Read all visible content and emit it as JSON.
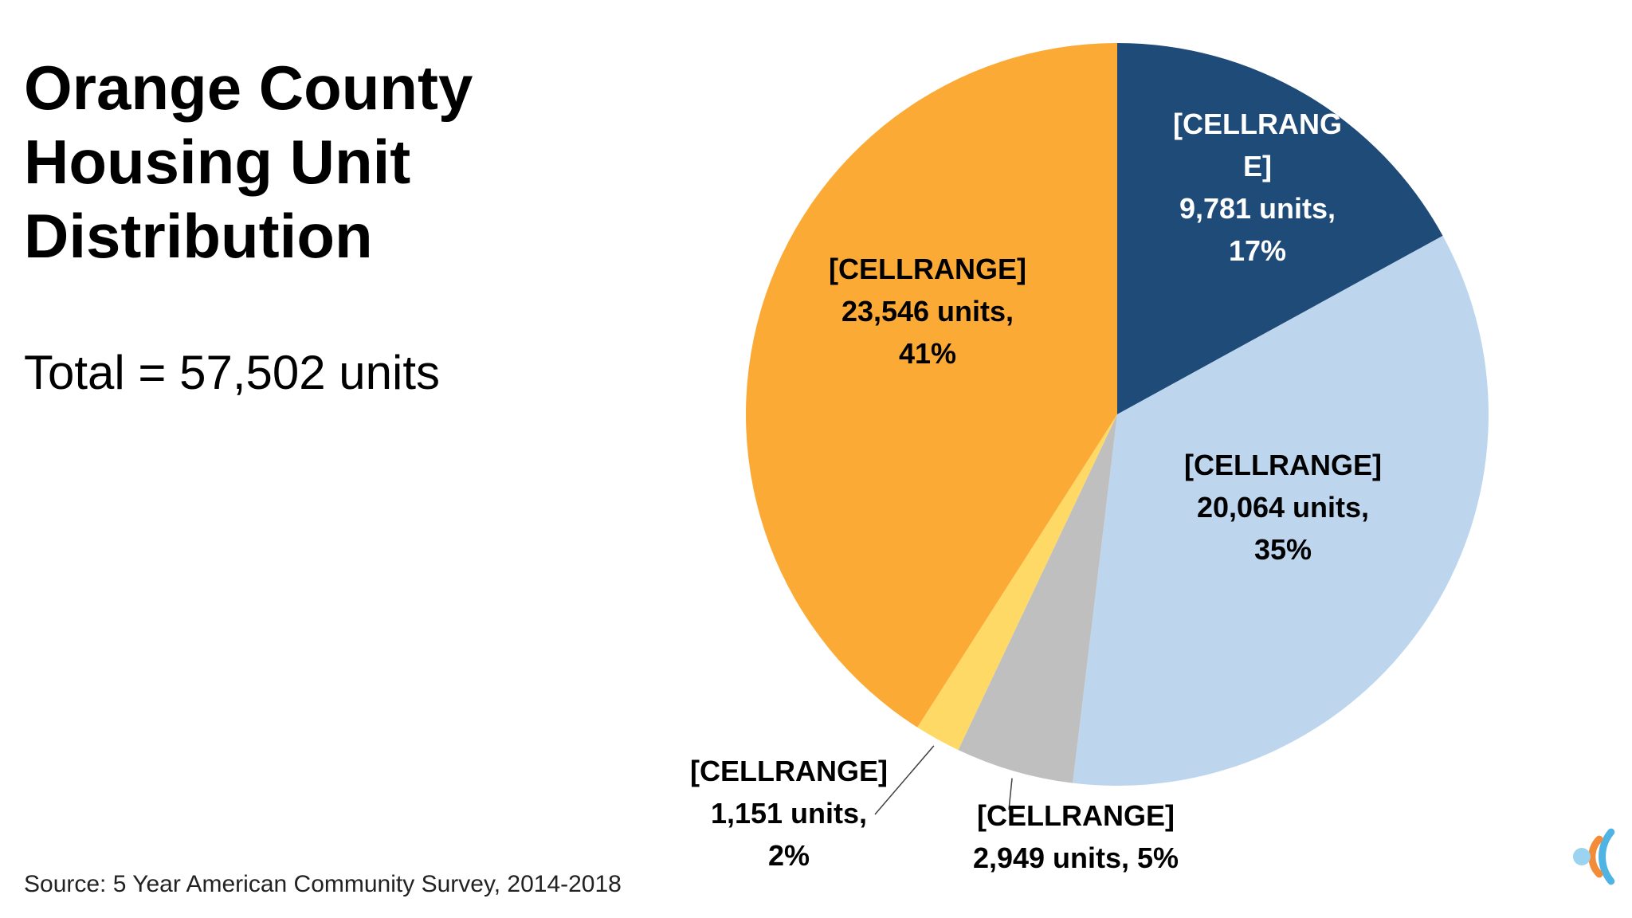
{
  "slide": {
    "title": "Orange County Housing Unit Distribution",
    "total": "Total = 57,502 units",
    "source": "Source: 5 Year American Community Survey, 2014-2018"
  },
  "chart_data": {
    "type": "pie",
    "start_angle_deg": 0,
    "direction": "clockwise",
    "slices": [
      {
        "category": "[CELLRANGE]",
        "value": 9781,
        "percent": 17,
        "color": "#1F4B79",
        "label_color": "#FFFFFF",
        "label_lines": [
          "[CELLRANG",
          "E]",
          "9,781 units,",
          "17%"
        ]
      },
      {
        "category": "[CELLRANGE]",
        "value": 20064,
        "percent": 35,
        "color": "#BDD6EE",
        "label_color": "#000000",
        "label_lines": [
          "[CELLRANGE]",
          "20,064 units,",
          "35%"
        ]
      },
      {
        "category": "[CELLRANGE]",
        "value": 2949,
        "percent": 5,
        "color": "#BFBFBF",
        "label_color": "#000000",
        "label_lines": [
          "[CELLRANGE]",
          "2,949 units, 5%"
        ]
      },
      {
        "category": "[CELLRANGE]",
        "value": 1151,
        "percent": 2,
        "color": "#FFD966",
        "label_color": "#000000",
        "label_lines": [
          "[CELLRANGE]",
          "1,151 units,",
          "2%"
        ]
      },
      {
        "category": "[CELLRANGE]",
        "value": 23546,
        "percent": 41,
        "color": "#FBAA36",
        "label_color": "#000000",
        "label_lines": [
          "[CELLRANGE]",
          "23,546 units,",
          "41%"
        ]
      }
    ]
  },
  "logo": {
    "icon": "concentric-c-logo-icon",
    "colors": [
      "#4FB3E3",
      "#F28C38",
      "#9BD3F0"
    ]
  }
}
